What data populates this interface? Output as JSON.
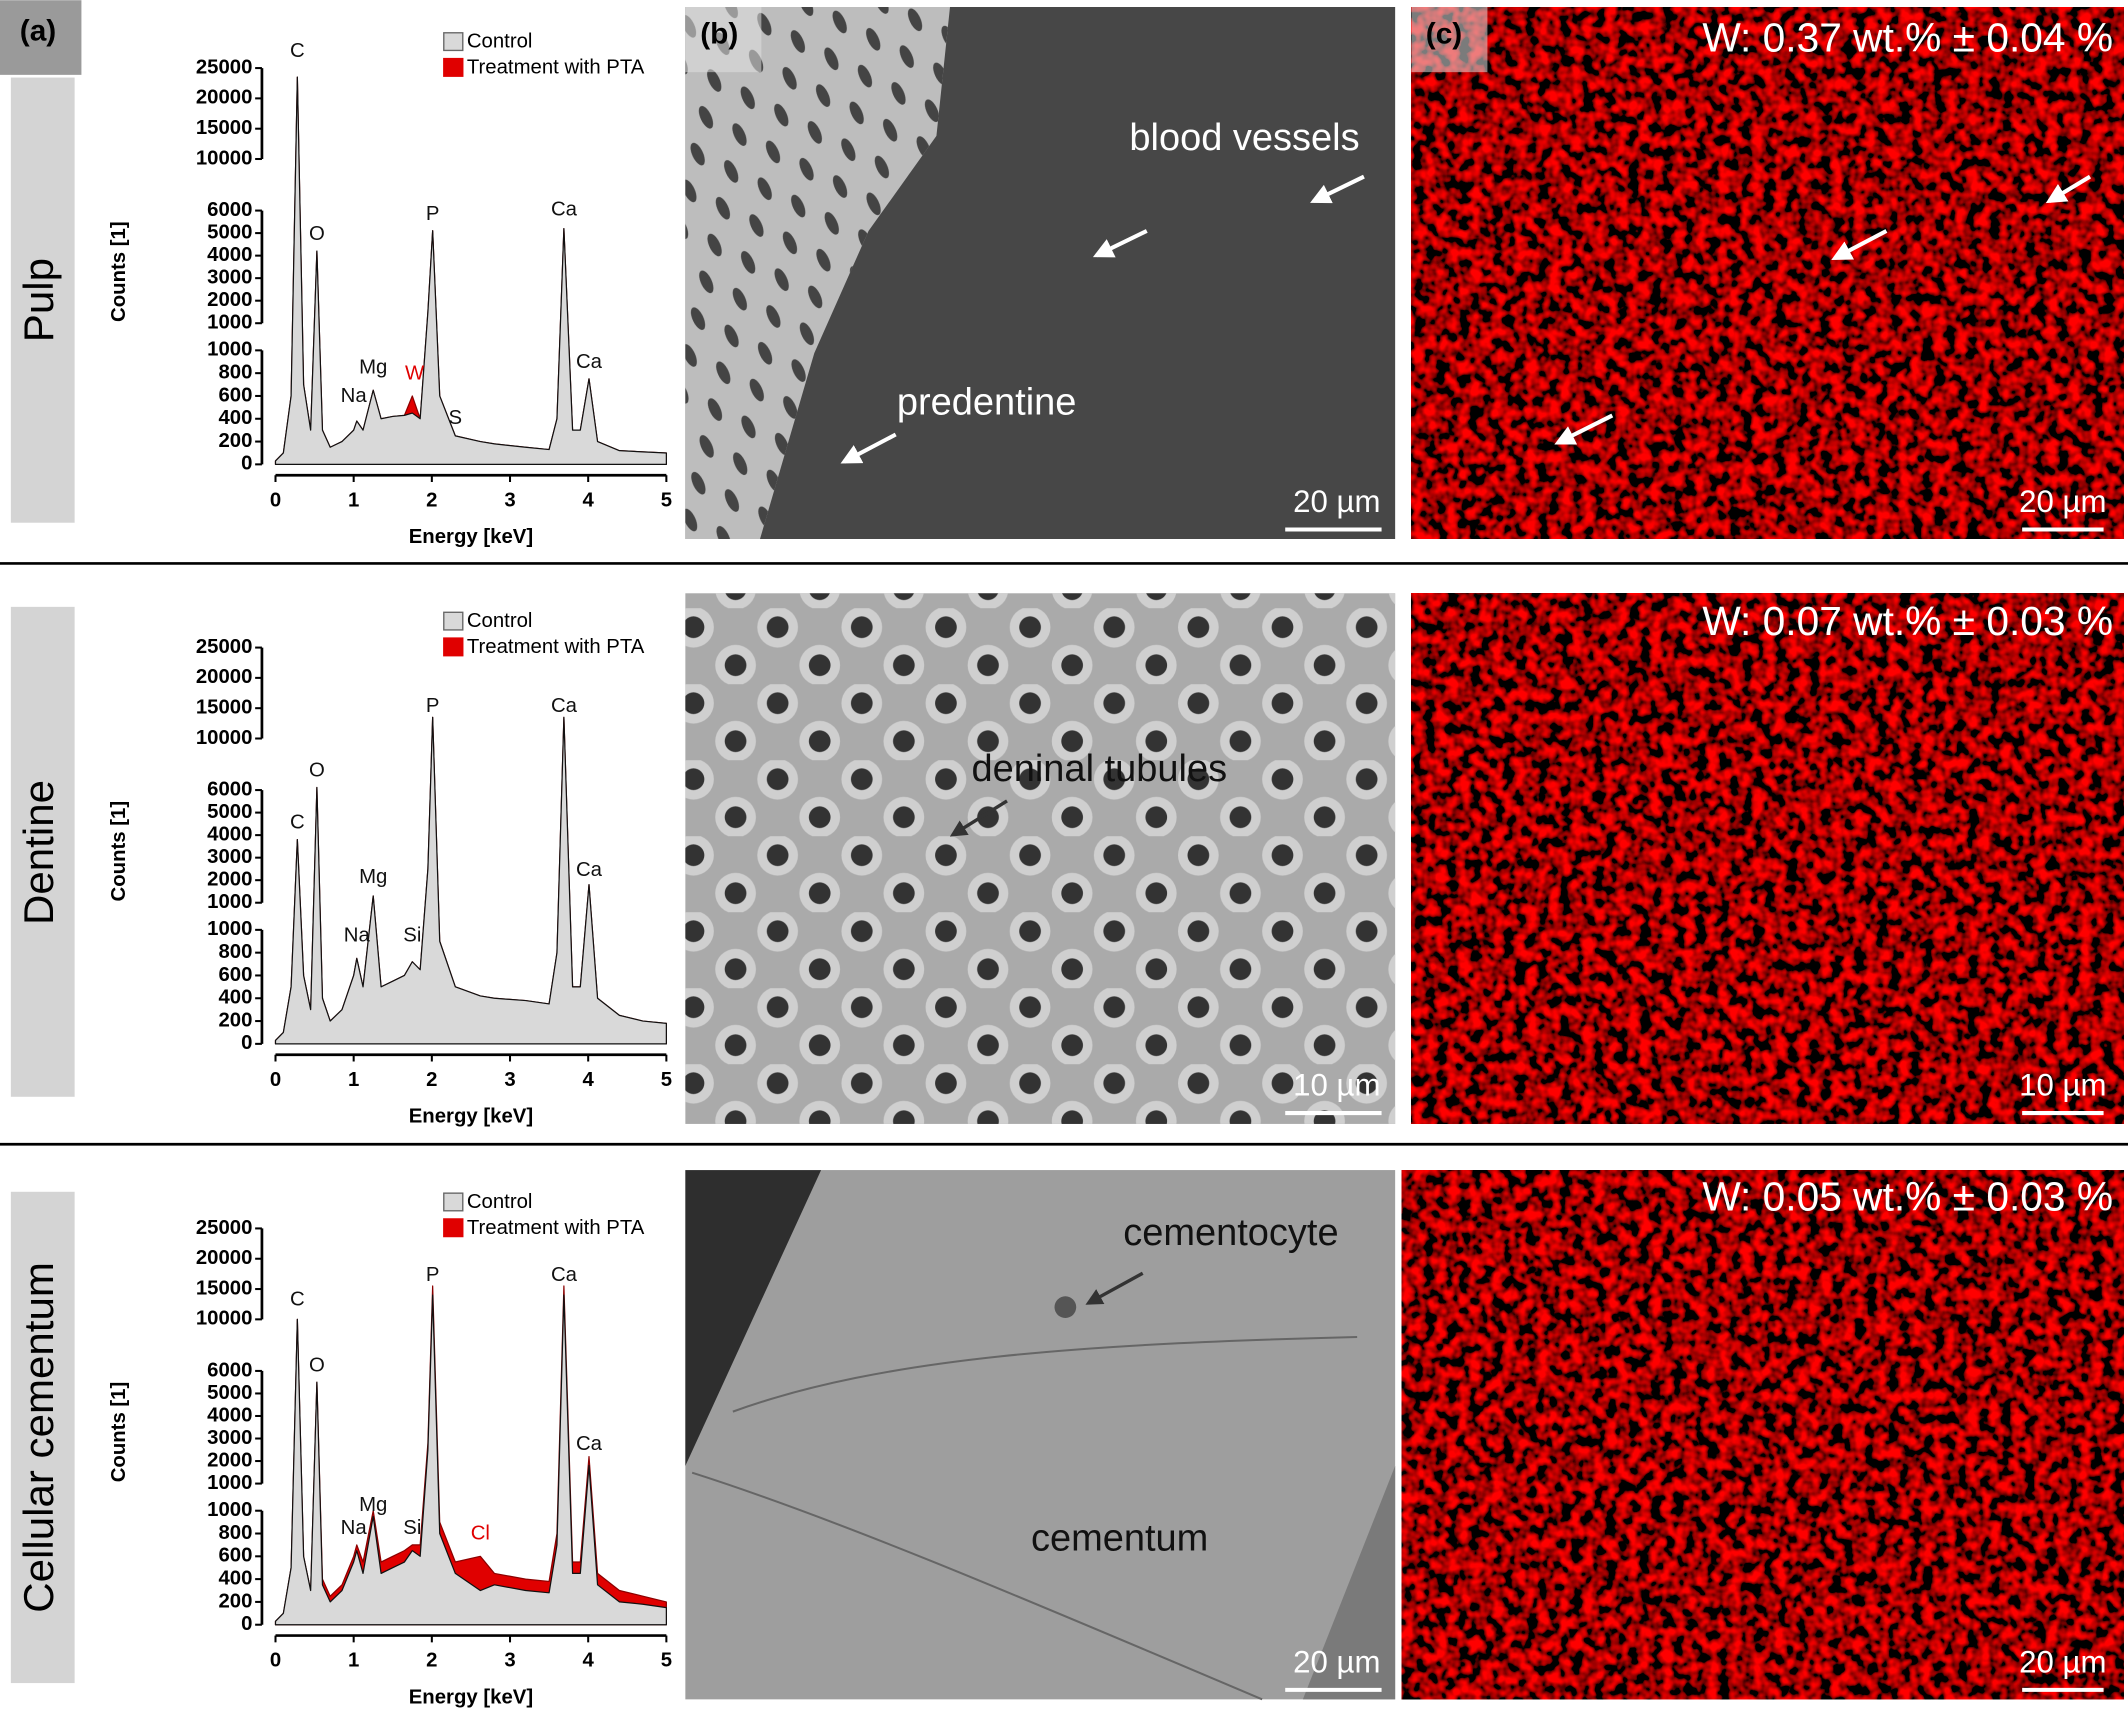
{
  "figure": {
    "panel_labels": [
      "(a)",
      "(b)",
      "(c)"
    ]
  },
  "rows": [
    {
      "label": "Pulp",
      "sem": {
        "annotations": [
          "blood vessels",
          "predentine"
        ],
        "scale_bar": "20 µm"
      },
      "map": {
        "text": "W: 0.37 wt.% ± 0.04 %",
        "scale_bar": "20 µm"
      }
    },
    {
      "label": "Dentine",
      "sem": {
        "annotations": [
          "deninal tubules"
        ],
        "scale_bar": "10 µm"
      },
      "map": {
        "text": "W: 0.07 wt.% ± 0.03 %",
        "scale_bar": "10 µm"
      }
    },
    {
      "label": "Cellular cementum",
      "sem": {
        "annotations": [
          "cementocyte",
          "cementum"
        ],
        "scale_bar": "20 µm"
      },
      "map": {
        "text": "W: 0.05 wt.% ± 0.03 %",
        "scale_bar": "20 µm"
      }
    }
  ],
  "chart_data": [
    {
      "type": "area",
      "xlabel": "Energy [keV]",
      "ylabel": "Counts [1]",
      "x": [
        0,
        0.1,
        0.2,
        0.28,
        0.36,
        0.45,
        0.53,
        0.6,
        0.7,
        0.85,
        1.0,
        1.04,
        1.12,
        1.25,
        1.35,
        1.5,
        1.65,
        1.75,
        1.85,
        1.95,
        2.01,
        2.1,
        2.3,
        2.62,
        2.8,
        3.2,
        3.5,
        3.6,
        3.69,
        3.8,
        3.9,
        4.01,
        4.12,
        4.4,
        4.7,
        5.0
      ],
      "xlim": [
        0,
        5
      ],
      "xticks": [
        0,
        1,
        2,
        3,
        4,
        5
      ],
      "y_segments": [
        {
          "ylim": [
            0,
            1000
          ],
          "yticks": [
            0,
            200,
            400,
            600,
            800,
            1000
          ]
        },
        {
          "ylim": [
            1000,
            6000
          ],
          "yticks": [
            1000,
            2000,
            3000,
            4000,
            5000,
            6000
          ]
        },
        {
          "ylim": [
            10000,
            25000
          ],
          "yticks": [
            10000,
            15000,
            20000,
            25000
          ]
        }
      ],
      "series": [
        {
          "name": "Control",
          "color": "#d9d9d9",
          "values": [
            30,
            100,
            600,
            23500,
            700,
            300,
            4200,
            300,
            150,
            200,
            300,
            380,
            300,
            650,
            400,
            420,
            430,
            450,
            400,
            1500,
            5100,
            600,
            250,
            200,
            180,
            150,
            130,
            400,
            5200,
            300,
            300,
            750,
            200,
            120,
            110,
            100
          ]
        },
        {
          "name": "Treatment with PTA",
          "color": "#e00000",
          "values": [
            30,
            100,
            600,
            23500,
            700,
            300,
            4200,
            300,
            150,
            200,
            300,
            380,
            300,
            650,
            400,
            420,
            430,
            600,
            400,
            1500,
            5100,
            600,
            250,
            200,
            180,
            150,
            130,
            400,
            5200,
            300,
            300,
            750,
            200,
            120,
            110,
            100
          ]
        }
      ],
      "annotations": [
        {
          "text": "C",
          "x": 0.28,
          "y": 25000
        },
        {
          "text": "O",
          "x": 0.53,
          "y": 4200
        },
        {
          "text": "Na",
          "x": 1.0,
          "y": 450
        },
        {
          "text": "Mg",
          "x": 1.25,
          "y": 700
        },
        {
          "text": "W",
          "x": 1.78,
          "y": 650,
          "color": "#e00000"
        },
        {
          "text": "S",
          "x": 2.3,
          "y": 260
        },
        {
          "text": "P",
          "x": 2.01,
          "y": 5100
        },
        {
          "text": "Ca",
          "x": 3.69,
          "y": 5300
        },
        {
          "text": "Ca",
          "x": 4.01,
          "y": 750
        }
      ]
    },
    {
      "type": "area",
      "xlabel": "Energy [keV]",
      "ylabel": "Counts [1]",
      "x": [
        0,
        0.1,
        0.2,
        0.28,
        0.36,
        0.45,
        0.53,
        0.6,
        0.7,
        0.85,
        1.0,
        1.04,
        1.12,
        1.25,
        1.35,
        1.5,
        1.65,
        1.75,
        1.85,
        1.95,
        2.01,
        2.1,
        2.3,
        2.62,
        2.8,
        3.2,
        3.5,
        3.6,
        3.69,
        3.8,
        3.9,
        4.01,
        4.12,
        4.4,
        4.7,
        5.0
      ],
      "xlim": [
        0,
        5
      ],
      "xticks": [
        0,
        1,
        2,
        3,
        4,
        5
      ],
      "y_segments": [
        {
          "ylim": [
            0,
            1000
          ],
          "yticks": [
            0,
            200,
            400,
            600,
            800,
            1000
          ]
        },
        {
          "ylim": [
            1000,
            6000
          ],
          "yticks": [
            1000,
            2000,
            3000,
            4000,
            5000,
            6000
          ]
        },
        {
          "ylim": [
            10000,
            25000
          ],
          "yticks": [
            10000,
            15000,
            20000,
            25000
          ]
        }
      ],
      "series": [
        {
          "name": "Control",
          "color": "#d9d9d9",
          "values": [
            30,
            100,
            500,
            3800,
            600,
            300,
            6200,
            400,
            200,
            300,
            600,
            750,
            500,
            1300,
            500,
            550,
            600,
            720,
            650,
            2500,
            13500,
            900,
            500,
            420,
            400,
            380,
            350,
            800,
            13500,
            500,
            500,
            1800,
            400,
            250,
            200,
            180
          ]
        },
        {
          "name": "Treatment with PTA",
          "color": "#e00000",
          "values": [
            30,
            100,
            500,
            3800,
            600,
            300,
            6200,
            400,
            200,
            300,
            600,
            750,
            500,
            1300,
            500,
            550,
            600,
            720,
            650,
            2500,
            13500,
            900,
            500,
            420,
            400,
            380,
            350,
            800,
            13500,
            500,
            500,
            1800,
            400,
            250,
            200,
            180
          ]
        }
      ],
      "annotations": [
        {
          "text": "C",
          "x": 0.28,
          "y": 3800
        },
        {
          "text": "O",
          "x": 0.53,
          "y": 6200
        },
        {
          "text": "Mg",
          "x": 1.25,
          "y": 1400
        },
        {
          "text": "Na",
          "x": 1.04,
          "y": 800
        },
        {
          "text": "Si",
          "x": 1.75,
          "y": 800
        },
        {
          "text": "P",
          "x": 2.01,
          "y": 12600
        },
        {
          "text": "Ca",
          "x": 3.69,
          "y": 12600
        },
        {
          "text": "Ca",
          "x": 4.01,
          "y": 1700
        }
      ]
    },
    {
      "type": "area",
      "xlabel": "Energy [keV]",
      "ylabel": "Counts [1]",
      "x": [
        0,
        0.1,
        0.2,
        0.28,
        0.36,
        0.45,
        0.53,
        0.6,
        0.7,
        0.85,
        1.0,
        1.04,
        1.12,
        1.25,
        1.35,
        1.5,
        1.65,
        1.75,
        1.85,
        1.95,
        2.01,
        2.1,
        2.3,
        2.62,
        2.8,
        3.2,
        3.5,
        3.6,
        3.69,
        3.8,
        3.9,
        4.01,
        4.12,
        4.4,
        4.7,
        5.0
      ],
      "xlim": [
        0,
        5
      ],
      "xticks": [
        0,
        1,
        2,
        3,
        4,
        5
      ],
      "y_segments": [
        {
          "ylim": [
            0,
            1000
          ],
          "yticks": [
            0,
            200,
            400,
            600,
            800,
            1000
          ]
        },
        {
          "ylim": [
            1000,
            6000
          ],
          "yticks": [
            1000,
            2000,
            3000,
            4000,
            5000,
            6000
          ]
        },
        {
          "ylim": [
            10000,
            25000
          ],
          "yticks": [
            10000,
            15000,
            20000,
            25000
          ]
        }
      ],
      "series": [
        {
          "name": "Control",
          "color": "#d9d9d9",
          "values": [
            30,
            100,
            500,
            10000,
            600,
            300,
            5500,
            350,
            200,
            300,
            550,
            650,
            450,
            950,
            450,
            500,
            550,
            650,
            600,
            2500,
            14000,
            800,
            450,
            300,
            350,
            300,
            280,
            700,
            14000,
            450,
            450,
            1800,
            350,
            200,
            180,
            150
          ]
        },
        {
          "name": "Treatment with PTA",
          "color": "#e00000",
          "values": [
            30,
            100,
            500,
            10000,
            600,
            300,
            5500,
            400,
            250,
            350,
            600,
            700,
            550,
            1000,
            550,
            600,
            650,
            700,
            700,
            2800,
            15500,
            900,
            550,
            600,
            450,
            400,
            380,
            800,
            15500,
            550,
            550,
            2200,
            450,
            300,
            250,
            200
          ]
        }
      ],
      "annotations": [
        {
          "text": "C",
          "x": 0.28,
          "y": 10500
        },
        {
          "text": "O",
          "x": 0.53,
          "y": 5500
        },
        {
          "text": "Na",
          "x": 1.0,
          "y": 700
        },
        {
          "text": "Mg",
          "x": 1.25,
          "y": 900
        },
        {
          "text": "Si",
          "x": 1.75,
          "y": 700
        },
        {
          "text": "Cl",
          "x": 2.62,
          "y": 650,
          "color": "#e00000"
        },
        {
          "text": "P",
          "x": 2.01,
          "y": 14500
        },
        {
          "text": "Ca",
          "x": 3.69,
          "y": 14500
        },
        {
          "text": "Ca",
          "x": 4.01,
          "y": 2000
        }
      ]
    }
  ]
}
